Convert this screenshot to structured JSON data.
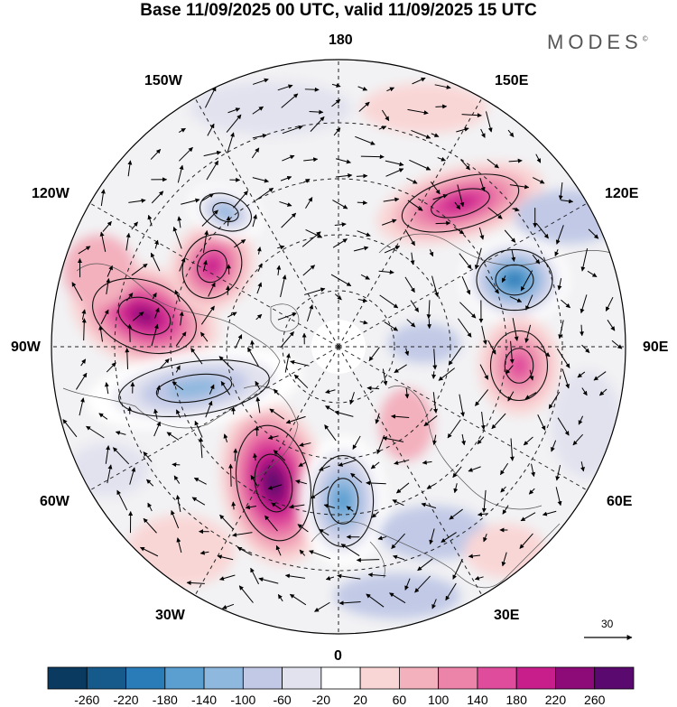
{
  "title": "Base 11/09/2025 00 UTC, valid 11/09/2025 15 UTC",
  "brand": "MODES",
  "brand_mark": "©",
  "longitude_labels": {
    "top": "180",
    "bottom": "0",
    "left": "90W",
    "right": "90E",
    "upper_left_1": "150W",
    "upper_right_1": "150E",
    "upper_left_2": "120W",
    "upper_right_2": "120E",
    "lower_left_1": "60W",
    "lower_right_1": "60E",
    "lower_left_2": "30W",
    "lower_right_2": "30E"
  },
  "reference_vector": {
    "label": "30"
  },
  "colorbar": {
    "colors": [
      "#0b3a60",
      "#165a8c",
      "#2a7cb8",
      "#5a9fd0",
      "#8fb8df",
      "#c1c9e6",
      "#e2e2ef",
      "#ffffff",
      "#f9d6d6",
      "#f3b0bd",
      "#ec84aa",
      "#e04c9c",
      "#c81e8c",
      "#8c0b78",
      "#5a0a6e"
    ],
    "ticks": [
      "-260",
      "-220",
      "-180",
      "-140",
      "-100",
      "-60",
      "-20",
      "20",
      "60",
      "100",
      "140",
      "180",
      "220",
      "260"
    ]
  },
  "map_features": {
    "anomaly_centers": [
      {
        "name": "positive-center-north-atlantic",
        "value": 270
      },
      {
        "name": "negative-center-europe",
        "value": -190
      },
      {
        "name": "positive-center-north-america-west",
        "value": 210
      },
      {
        "name": "negative-center-north-america-east",
        "value": -150
      },
      {
        "name": "negative-center-siberia",
        "value": -200
      },
      {
        "name": "positive-center-central-siberia",
        "value": 150
      },
      {
        "name": "positive-center-pacific",
        "value": 170
      },
      {
        "name": "positive-center-alaska",
        "value": 190
      },
      {
        "name": "negative-center-bering",
        "value": -120
      }
    ]
  }
}
